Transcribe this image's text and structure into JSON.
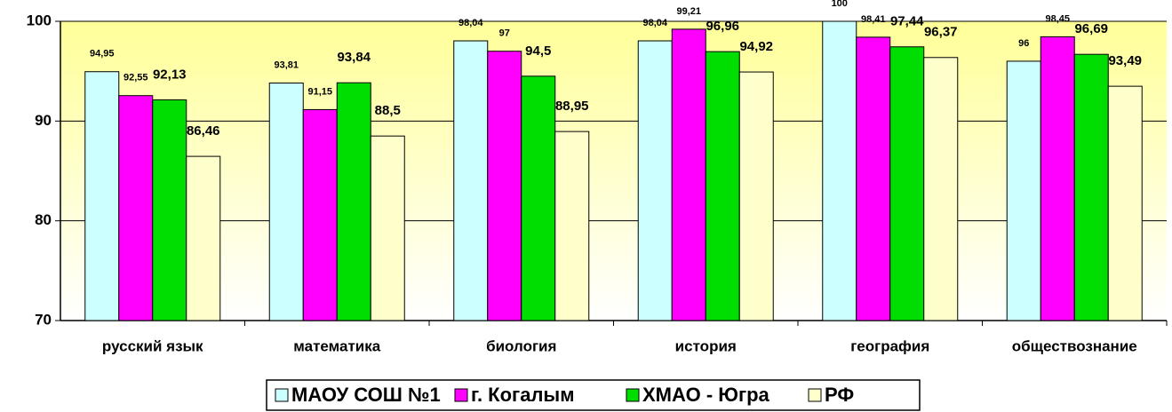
{
  "chart_data": {
    "type": "bar",
    "categories": [
      "русский язык",
      "математика",
      "биология",
      "история",
      "география",
      "обществознание"
    ],
    "series": [
      {
        "name": "МАОУ СОШ №1",
        "color": "#ccffff",
        "values": [
          94.95,
          93.81,
          98.04,
          98.04,
          100,
          96
        ],
        "value_labels": [
          "94,95",
          "93,81",
          "98,04",
          "98,04",
          "100",
          "96"
        ]
      },
      {
        "name": "г. Когалым",
        "color": "#ff00ff",
        "values": [
          92.55,
          91.15,
          97,
          99.21,
          98.41,
          98.45
        ],
        "value_labels": [
          "92,55",
          "91,15",
          "97",
          "99,21",
          "98,41",
          "98,45"
        ]
      },
      {
        "name": "ХМАО - Югра",
        "color": "#00dd00",
        "values": [
          92.13,
          93.84,
          94.5,
          96.96,
          97.44,
          96.69
        ],
        "value_labels": [
          "92,13",
          "93,84",
          "94,5",
          "96,96",
          "97,44",
          "96,69"
        ]
      },
      {
        "name": "РФ",
        "color": "#ffffcc",
        "values": [
          86.46,
          88.5,
          88.95,
          94.92,
          96.37,
          93.49
        ],
        "value_labels": [
          "86,46",
          "88,5",
          "88,95",
          "94,92",
          "96,37",
          "93,49"
        ]
      }
    ],
    "ylim": [
      70,
      100
    ],
    "yticks": [
      70,
      80,
      90,
      100
    ],
    "grid": true,
    "legend": "bottom"
  }
}
